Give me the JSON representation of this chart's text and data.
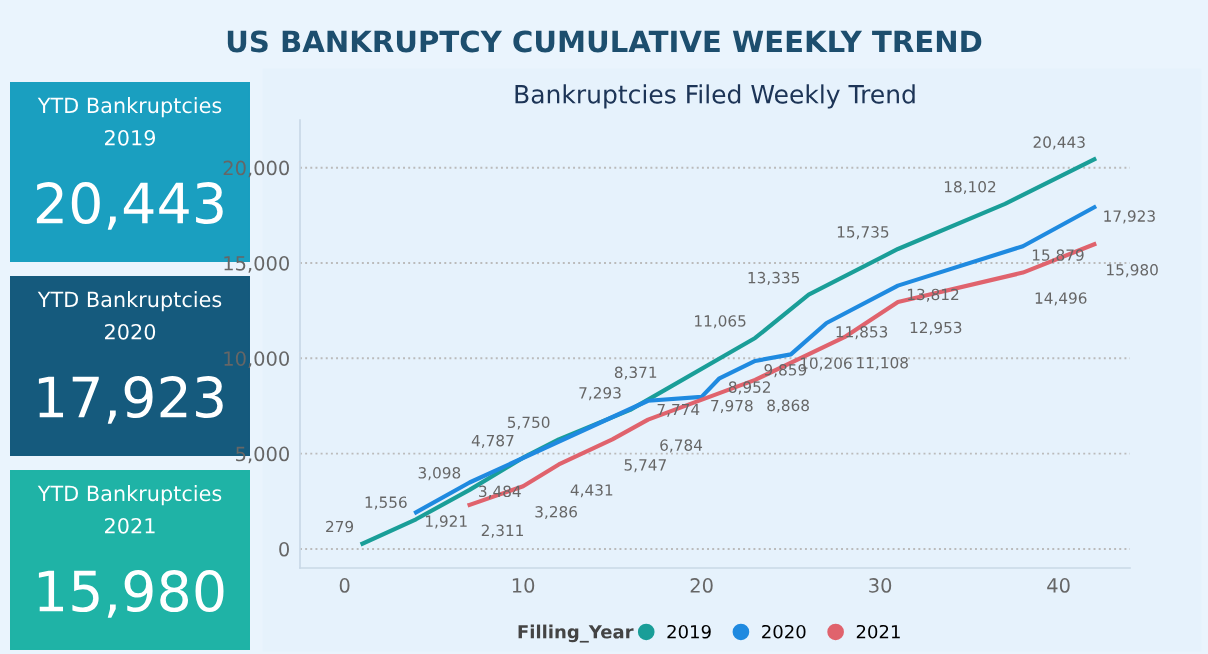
{
  "chart_data": [
    {
      "type": "other",
      "title": "US BANKRUPTCY CUMULATIVE WEEKLY TREND"
    },
    {
      "type": "other",
      "title": "YTD Bankruptcies",
      "subtitle": "2019",
      "annotations": [
        "20,443"
      ],
      "color": "#1a9fc0"
    },
    {
      "type": "other",
      "title": "YTD Bankruptcies",
      "subtitle": "2020",
      "annotations": [
        "17,923"
      ],
      "color": "#155a7d"
    },
    {
      "type": "other",
      "title": "YTD Bankruptcies",
      "subtitle": "2021",
      "annotations": [
        "15,980"
      ],
      "color": "#1fb3a6"
    },
    {
      "type": "line",
      "title": "Bankruptcies Filed Weekly Trend",
      "legend_title": "Filling_Year",
      "legend": "bottom",
      "grid": "y",
      "xlim": [
        -2.5,
        44
      ],
      "xticks": [
        0,
        10,
        20,
        30,
        40
      ],
      "ylim": [
        -1000,
        22500
      ],
      "yticks": [
        0,
        {
          "value": 5000,
          "label": "5,000"
        },
        {
          "value": 10000,
          "label": "10,000"
        },
        {
          "value": 15000,
          "label": "15,000"
        },
        {
          "value": 20000,
          "label": "20,000"
        }
      ],
      "series": [
        {
          "name": "2019",
          "color": "#1a9e98",
          "x": [
            1,
            4,
            7,
            10,
            12,
            16,
            18,
            23,
            26,
            31,
            37,
            42
          ],
          "values": [
            279,
            1556,
            3098,
            4787,
            5750,
            7293,
            8371,
            11065,
            13335,
            15735,
            18102,
            20443
          ],
          "value_labels": [
            "279",
            "1,556",
            "3,098",
            "4,787",
            "5,750",
            "7,293",
            "8,371",
            "11,065",
            "13,335",
            "15,735",
            "18,102",
            "20,443"
          ]
        },
        {
          "name": "2020",
          "color": "#1f8ae0",
          "x": [
            4,
            7,
            17,
            20,
            21,
            23,
            25,
            27,
            31,
            38,
            42
          ],
          "values": [
            1921,
            3484,
            7774,
            7978,
            8952,
            9859,
            10206,
            11853,
            13812,
            15879,
            17923
          ],
          "value_labels": [
            "1,921",
            "3,484",
            "7,774",
            "7,978",
            "8,952",
            "9,859",
            "10,206",
            "11,853",
            "13,812",
            "15,879",
            "17,923"
          ]
        },
        {
          "name": "2021",
          "color": "#e0636d",
          "x": [
            7,
            10,
            12,
            15,
            17,
            23,
            28,
            31,
            38,
            42
          ],
          "values": [
            2311,
            3286,
            4431,
            5747,
            6784,
            8868,
            11108,
            12953,
            14496,
            15980
          ],
          "value_labels": [
            "2,311",
            "3,286",
            "4,431",
            "5,747",
            "6,784",
            "8,868",
            "11,108",
            "12,953",
            "14,496",
            "15,980"
          ]
        }
      ]
    }
  ]
}
